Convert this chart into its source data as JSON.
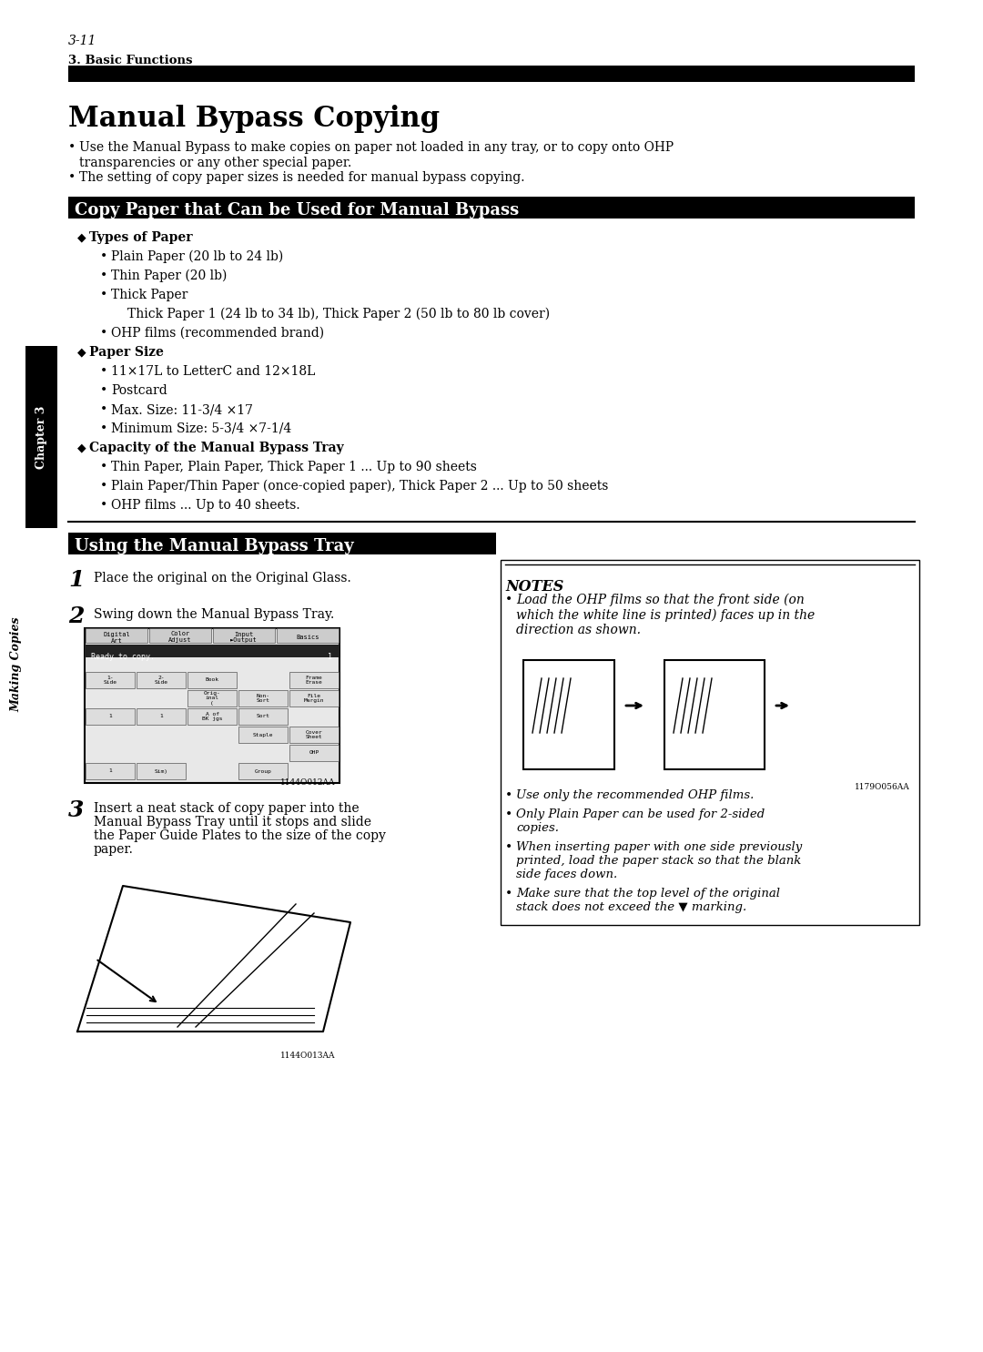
{
  "page_number": "3-11",
  "chapter_label": "3. Basic Functions",
  "title": "Manual Bypass Copying",
  "intro_bullets": [
    "Use the Manual Bypass to make copies on paper not loaded in any tray, or to copy onto OHP\n  transparencies or any other special paper.",
    "The setting of copy paper sizes is needed for manual bypass copying."
  ],
  "section1_title": "Copy Paper that Can be Used for Manual Bypass",
  "section1_content": [
    {
      "type": "diamond_head",
      "text": "Types of Paper"
    },
    {
      "type": "bullet2",
      "text": "Plain Paper (20 lb to 24 lb)"
    },
    {
      "type": "bullet2",
      "text": "Thin Paper (20 lb)"
    },
    {
      "type": "bullet2",
      "text": "Thick Paper"
    },
    {
      "type": "indent3",
      "text": "Thick Paper 1 (24 lb to 34 lb), Thick Paper 2 (50 lb to 80 lb cover)"
    },
    {
      "type": "bullet2",
      "text": "OHP films (recommended brand)"
    },
    {
      "type": "diamond_head",
      "text": "Paper Size"
    },
    {
      "type": "bullet2",
      "text": "11×17L to LetterC and 12×18L"
    },
    {
      "type": "bullet2",
      "text": "Postcard"
    },
    {
      "type": "bullet2",
      "text": "Max. Size: 11-3/4 ×17"
    },
    {
      "type": "bullet2",
      "text": "Minimum Size: 5-3/4 ×7-1/4"
    },
    {
      "type": "diamond_head",
      "text": "Capacity of the Manual Bypass Tray"
    },
    {
      "type": "bullet2",
      "text": "Thin Paper, Plain Paper, Thick Paper 1 ... Up to 90 sheets"
    },
    {
      "type": "bullet2",
      "text": "Plain Paper/Thin Paper (once-copied paper), Thick Paper 2 ... Up to 50 sheets"
    },
    {
      "type": "bullet2",
      "text": "OHP films ... Up to 40 sheets."
    }
  ],
  "section2_title": "Using the Manual Bypass Tray",
  "steps": [
    {
      "num": "1",
      "text": "Place the original on the Original Glass."
    },
    {
      "num": "2",
      "text": "Swing down the Manual Bypass Tray."
    },
    {
      "num": "3",
      "text": "Insert a neat stack of copy paper into the\nManual Bypass Tray until it stops and slide\nthe Paper Guide Plates to the size of the copy\npaper."
    }
  ],
  "notes_title": "NOTES",
  "notes_bullets": [
    "Load the OHP films so that the front side (on\nwhich the white line is printed) faces up in the\ndirection as shown.",
    "Use only the recommended OHP films.",
    "Only Plain Paper can be used for 2-sided\ncopies.",
    "When inserting paper with one side previously\nprinted, load the paper stack so that the blank\nside faces down.",
    "Make sure that the top level of the original\nstack does not exceed the ▼ marking."
  ],
  "sidebar_chapter": "Chapter 3",
  "sidebar_making": "Making Copies",
  "bg_color": "#ffffff",
  "header_bar_color": "#000000",
  "section_bar_color": "#000000",
  "section_text_color": "#ffffff",
  "text_color": "#000000"
}
